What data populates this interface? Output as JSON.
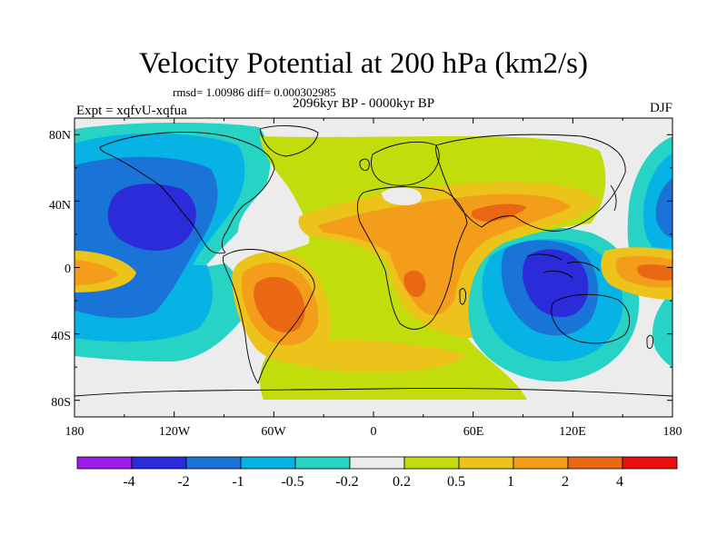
{
  "header": {
    "title": "Velocity Potential at 200 hPa (km2/s)",
    "stats": "rmsd= 1.00986 diff= 0.000302985",
    "period": "2096kyr BP - 0000kyr BP",
    "experiment": "Expt = xqfvU-xqfua",
    "season": "DJF"
  },
  "axes": {
    "y_ticks": [
      "80N",
      "40N",
      "0",
      "40S",
      "80S"
    ],
    "x_ticks": [
      "180",
      "120W",
      "60W",
      "0",
      "60E",
      "120E",
      "180"
    ]
  },
  "colorbar": {
    "labels": [
      "-4",
      "-2",
      "-1",
      "-0.5",
      "-0.2",
      "0.2",
      "0.5",
      "1",
      "2",
      "4"
    ],
    "colors": [
      "#9b1de8",
      "#2b2bd9",
      "#1a74d8",
      "#06b3e4",
      "#27d3c4",
      "#ececec",
      "#c2dd0c",
      "#ecc31a",
      "#f39d1a",
      "#ea6714",
      "#e80f0f"
    ]
  },
  "map": {
    "projection": "cylindrical-equidistant",
    "lon_range": [
      -180,
      180
    ],
    "lat_range": [
      -90,
      90
    ]
  },
  "palette": {
    "background": "#ececec",
    "coast": "#000000"
  }
}
